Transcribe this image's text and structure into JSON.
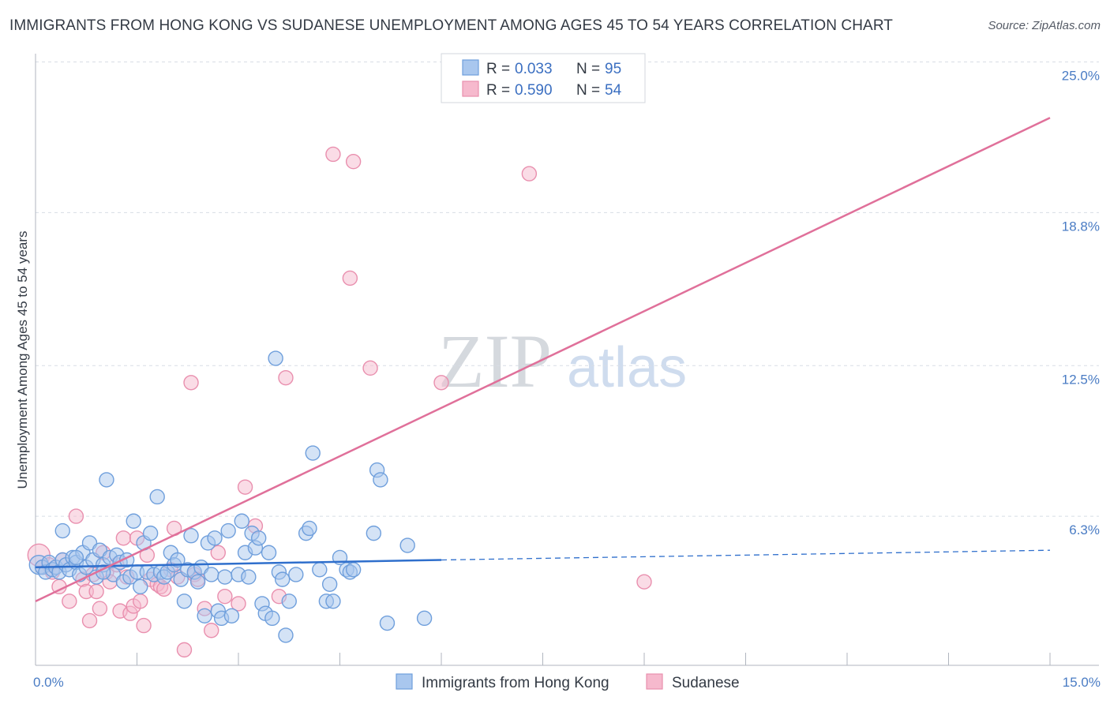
{
  "title": "IMMIGRANTS FROM HONG KONG VS SUDANESE UNEMPLOYMENT AMONG AGES 45 TO 54 YEARS CORRELATION CHART",
  "source": "Source: ZipAtlas.com",
  "watermark": {
    "zip": "ZIP",
    "atlas": "atlas"
  },
  "colors": {
    "blue_fill": "#a9c7ee",
    "blue_stroke": "#6f9fdc",
    "blue_line": "#2f6fcc",
    "pink_fill": "#f6b9cd",
    "pink_stroke": "#e98fae",
    "pink_line": "#e0709a",
    "grid": "#d8dde5",
    "axis": "#b0b6bf",
    "tick_text": "#4a7cc4"
  },
  "chart_data": {
    "type": "scatter",
    "title": "IMMIGRANTS FROM HONG KONG VS SUDANESE UNEMPLOYMENT AMONG AGES 45 TO 54 YEARS CORRELATION CHART",
    "xlabel": "",
    "ylabel": "Unemployment Among Ages 45 to 54 years",
    "xlim": [
      0,
      15
    ],
    "ylim": [
      0,
      25
    ],
    "x_tick_labels": [
      "0.0%",
      "15.0%"
    ],
    "y_ticks": [
      {
        "value": 6.3,
        "label": "6.3%"
      },
      {
        "value": 12.5,
        "label": "12.5%"
      },
      {
        "value": 18.8,
        "label": "18.8%"
      },
      {
        "value": 25.0,
        "label": "25.0%"
      }
    ],
    "legend": [
      {
        "r_label": "R =",
        "r_value": "0.033",
        "n_label": "N =",
        "n_value": "95"
      },
      {
        "r_label": "R =",
        "r_value": "0.590",
        "n_label": "N =",
        "n_value": "54"
      }
    ],
    "series": [
      {
        "name": "Immigrants from Hong Kong",
        "trend": {
          "x_start": 0,
          "y_start": 4.2,
          "x_solid_end": 6.0,
          "y_solid_end": 4.5,
          "x_end": 15,
          "y_end": 4.9
        },
        "points": [
          [
            0.05,
            4.3
          ],
          [
            0.1,
            4.2
          ],
          [
            0.15,
            4.0
          ],
          [
            0.2,
            4.4
          ],
          [
            0.25,
            4.1
          ],
          [
            0.3,
            4.2
          ],
          [
            0.35,
            4.0
          ],
          [
            0.4,
            4.5
          ],
          [
            0.45,
            4.3
          ],
          [
            0.5,
            4.1
          ],
          [
            0.55,
            4.6
          ],
          [
            0.6,
            4.4
          ],
          [
            0.65,
            3.9
          ],
          [
            0.7,
            4.8
          ],
          [
            0.75,
            4.2
          ],
          [
            0.8,
            5.2
          ],
          [
            0.85,
            4.5
          ],
          [
            0.9,
            3.8
          ],
          [
            0.95,
            4.9
          ],
          [
            1.0,
            4.3
          ],
          [
            1.05,
            7.8
          ],
          [
            1.1,
            4.6
          ],
          [
            1.15,
            3.9
          ],
          [
            1.2,
            4.7
          ],
          [
            1.25,
            4.4
          ],
          [
            1.3,
            3.6
          ],
          [
            1.35,
            4.5
          ],
          [
            1.4,
            3.8
          ],
          [
            1.45,
            6.1
          ],
          [
            1.5,
            4.0
          ],
          [
            1.55,
            3.4
          ],
          [
            1.6,
            5.2
          ],
          [
            1.65,
            4.0
          ],
          [
            1.7,
            5.6
          ],
          [
            1.75,
            3.9
          ],
          [
            1.8,
            7.1
          ],
          [
            1.85,
            4.0
          ],
          [
            1.9,
            3.8
          ],
          [
            1.95,
            4.0
          ],
          [
            2.0,
            4.8
          ],
          [
            2.05,
            4.3
          ],
          [
            2.1,
            4.5
          ],
          [
            2.15,
            3.7
          ],
          [
            2.2,
            2.8
          ],
          [
            2.25,
            4.1
          ],
          [
            2.3,
            5.5
          ],
          [
            2.35,
            4.0
          ],
          [
            2.4,
            3.6
          ],
          [
            2.45,
            4.2
          ],
          [
            2.5,
            2.2
          ],
          [
            2.55,
            5.2
          ],
          [
            2.6,
            3.9
          ],
          [
            2.65,
            5.4
          ],
          [
            2.7,
            2.4
          ],
          [
            2.75,
            2.1
          ],
          [
            2.8,
            3.8
          ],
          [
            2.85,
            5.7
          ],
          [
            2.9,
            2.2
          ],
          [
            3.0,
            3.9
          ],
          [
            3.05,
            6.1
          ],
          [
            3.1,
            4.8
          ],
          [
            3.15,
            3.8
          ],
          [
            3.2,
            5.6
          ],
          [
            3.25,
            5.0
          ],
          [
            3.3,
            5.4
          ],
          [
            3.35,
            2.7
          ],
          [
            3.4,
            2.3
          ],
          [
            3.45,
            4.8
          ],
          [
            3.5,
            2.1
          ],
          [
            3.55,
            12.8
          ],
          [
            3.6,
            4.0
          ],
          [
            3.65,
            3.7
          ],
          [
            3.7,
            1.4
          ],
          [
            3.75,
            2.8
          ],
          [
            3.85,
            3.9
          ],
          [
            4.0,
            5.6
          ],
          [
            4.05,
            5.8
          ],
          [
            4.1,
            8.9
          ],
          [
            4.2,
            4.1
          ],
          [
            4.3,
            2.8
          ],
          [
            4.35,
            3.5
          ],
          [
            4.4,
            2.8
          ],
          [
            4.5,
            4.6
          ],
          [
            4.6,
            4.1
          ],
          [
            4.65,
            4.0
          ],
          [
            4.7,
            4.1
          ],
          [
            5.0,
            5.6
          ],
          [
            5.05,
            8.2
          ],
          [
            5.1,
            7.8
          ],
          [
            5.2,
            1.9
          ],
          [
            5.5,
            5.1
          ],
          [
            5.75,
            2.1
          ],
          [
            0.4,
            5.7
          ],
          [
            0.6,
            4.6
          ],
          [
            1.0,
            4.0
          ]
        ]
      },
      {
        "name": "Sudanese",
        "trend": {
          "x_start": 0,
          "y_start": 2.8,
          "x_end": 15,
          "y_end": 22.7
        },
        "points": [
          [
            0.05,
            4.7
          ],
          [
            0.1,
            4.2
          ],
          [
            0.2,
            4.3
          ],
          [
            0.25,
            4.0
          ],
          [
            0.35,
            3.4
          ],
          [
            0.4,
            4.5
          ],
          [
            0.5,
            2.8
          ],
          [
            0.6,
            6.3
          ],
          [
            0.7,
            3.7
          ],
          [
            0.75,
            3.2
          ],
          [
            0.8,
            2.0
          ],
          [
            0.85,
            3.9
          ],
          [
            0.9,
            3.2
          ],
          [
            0.95,
            2.5
          ],
          [
            1.0,
            4.8
          ],
          [
            1.05,
            4.0
          ],
          [
            1.1,
            3.6
          ],
          [
            1.2,
            4.3
          ],
          [
            1.25,
            2.4
          ],
          [
            1.3,
            5.4
          ],
          [
            1.35,
            3.8
          ],
          [
            1.4,
            2.3
          ],
          [
            1.45,
            2.6
          ],
          [
            1.5,
            5.4
          ],
          [
            1.55,
            2.8
          ],
          [
            1.6,
            1.8
          ],
          [
            1.65,
            4.7
          ],
          [
            1.7,
            3.7
          ],
          [
            1.8,
            3.5
          ],
          [
            1.85,
            3.4
          ],
          [
            1.9,
            3.3
          ],
          [
            2.0,
            4.1
          ],
          [
            2.05,
            5.8
          ],
          [
            2.1,
            3.8
          ],
          [
            2.2,
            0.8
          ],
          [
            2.3,
            11.8
          ],
          [
            2.35,
            3.9
          ],
          [
            2.4,
            3.7
          ],
          [
            2.5,
            2.5
          ],
          [
            2.6,
            1.6
          ],
          [
            2.7,
            4.8
          ],
          [
            2.8,
            3.0
          ],
          [
            3.0,
            2.7
          ],
          [
            3.1,
            7.5
          ],
          [
            3.25,
            5.9
          ],
          [
            3.6,
            3.0
          ],
          [
            3.7,
            12.0
          ],
          [
            4.4,
            21.2
          ],
          [
            4.65,
            16.1
          ],
          [
            4.7,
            20.9
          ],
          [
            4.95,
            12.4
          ],
          [
            6.0,
            11.8
          ],
          [
            7.3,
            20.4
          ],
          [
            9.0,
            3.6
          ]
        ]
      }
    ]
  }
}
